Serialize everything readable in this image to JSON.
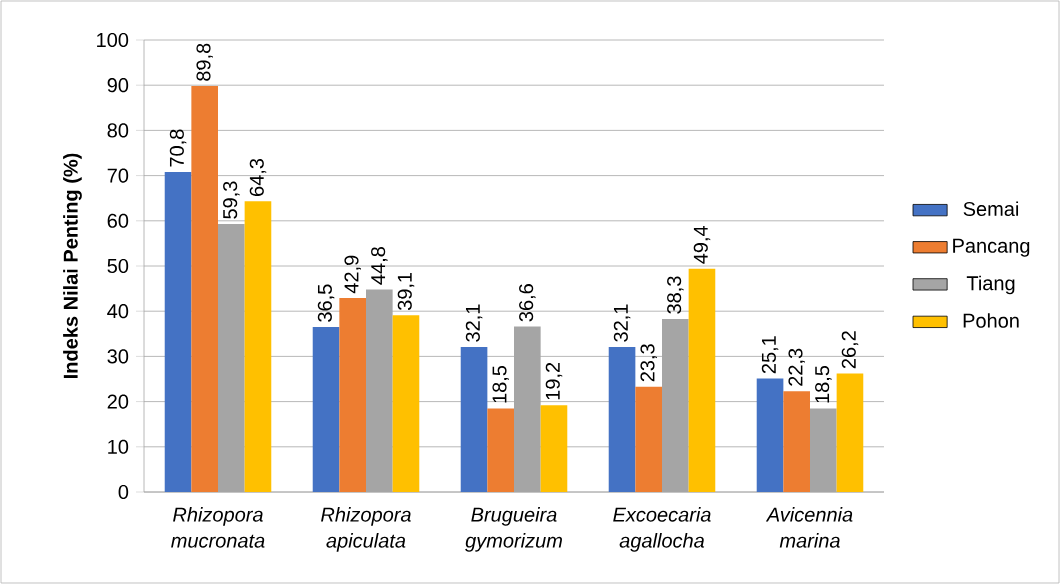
{
  "chart_data": {
    "type": "bar",
    "ylabel": "Indeks Nilai Penting (%)",
    "categories": [
      "Rhizopora mucronata",
      "Rhizopora apiculata",
      "Brugueira gymorizum",
      "Excoecaria agallocha",
      "Avicennia marina"
    ],
    "series": [
      {
        "name": "Semai",
        "color": "#4472c4",
        "values": [
          70.8,
          36.5,
          32.1,
          32.1,
          25.1
        ],
        "value_labels": [
          "70,8",
          "36,5",
          "32,1",
          "32,1",
          "25,1"
        ]
      },
      {
        "name": "Pancang",
        "color": "#ed7d31",
        "values": [
          89.8,
          42.9,
          18.5,
          23.3,
          22.3
        ],
        "value_labels": [
          "89,8",
          "42,9",
          "18,5",
          "23,3",
          "22,3"
        ]
      },
      {
        "name": "Tiang",
        "color": "#a5a5a5",
        "values": [
          59.3,
          44.8,
          36.6,
          38.3,
          18.5
        ],
        "value_labels": [
          "59,3",
          "44,8",
          "36,6",
          "38,3",
          "18,5"
        ]
      },
      {
        "name": "Pohon",
        "color": "#ffc000",
        "values": [
          64.3,
          39.1,
          19.2,
          49.4,
          26.2
        ],
        "value_labels": [
          "64,3",
          "39,1",
          "19,2",
          "49,4",
          "26,2"
        ]
      }
    ],
    "ylim": [
      0,
      100
    ],
    "yticks": [
      0,
      10,
      20,
      30,
      40,
      50,
      60,
      70,
      80,
      90,
      100
    ],
    "grid": "y",
    "legend": "right"
  }
}
